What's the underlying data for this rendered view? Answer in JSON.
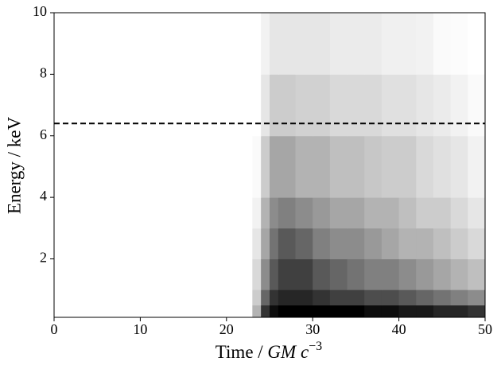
{
  "chart_data": {
    "type": "heatmap",
    "xlabel": {
      "text": "Time / ",
      "math": "GM c",
      "sup": "−3"
    },
    "ylabel": "Energy / keV",
    "xbins": [
      0,
      23,
      24,
      25,
      26,
      28,
      30,
      32,
      34,
      36,
      38,
      40,
      42,
      44,
      46,
      48,
      50
    ],
    "ybins": [
      0.1,
      0.5,
      1,
      2,
      3,
      4,
      6,
      8,
      10
    ],
    "z": [
      [
        0,
        0.3,
        0.8,
        0.95,
        1,
        1,
        1,
        1,
        1,
        0.95,
        0.95,
        0.9,
        0.9,
        0.85,
        0.85,
        0.8
      ],
      [
        0,
        0.2,
        0.6,
        0.8,
        0.85,
        0.85,
        0.8,
        0.75,
        0.75,
        0.7,
        0.7,
        0.65,
        0.6,
        0.55,
        0.5,
        0.45
      ],
      [
        0,
        0.15,
        0.45,
        0.65,
        0.75,
        0.75,
        0.65,
        0.6,
        0.55,
        0.5,
        0.5,
        0.45,
        0.4,
        0.35,
        0.3,
        0.25
      ],
      [
        0,
        0.1,
        0.35,
        0.55,
        0.65,
        0.6,
        0.5,
        0.45,
        0.45,
        0.4,
        0.35,
        0.3,
        0.3,
        0.25,
        0.2,
        0.15
      ],
      [
        0,
        0.05,
        0.3,
        0.45,
        0.5,
        0.45,
        0.4,
        0.35,
        0.35,
        0.3,
        0.3,
        0.25,
        0.2,
        0.2,
        0.15,
        0.1
      ],
      [
        0,
        0.02,
        0.2,
        0.35,
        0.35,
        0.3,
        0.3,
        0.25,
        0.25,
        0.22,
        0.2,
        0.2,
        0.15,
        0.12,
        0.1,
        0.05
      ],
      [
        0,
        0,
        0.1,
        0.2,
        0.2,
        0.18,
        0.18,
        0.15,
        0.15,
        0.15,
        0.12,
        0.12,
        0.1,
        0.08,
        0.05,
        0.02
      ],
      [
        0,
        0,
        0.05,
        0.1,
        0.1,
        0.1,
        0.1,
        0.08,
        0.08,
        0.08,
        0.06,
        0.06,
        0.05,
        0.02,
        0.01,
        0
      ]
    ],
    "colormap": "Greys",
    "xlim": [
      0,
      50
    ],
    "xticks": [
      0,
      10,
      20,
      30,
      40,
      50
    ],
    "ylim": [
      0.1,
      10
    ],
    "yticks": [
      2,
      4,
      6,
      8,
      10
    ],
    "hlines": [
      {
        "value": 6.4,
        "color": "#000000",
        "style": "dashed"
      }
    ],
    "grid": false
  }
}
